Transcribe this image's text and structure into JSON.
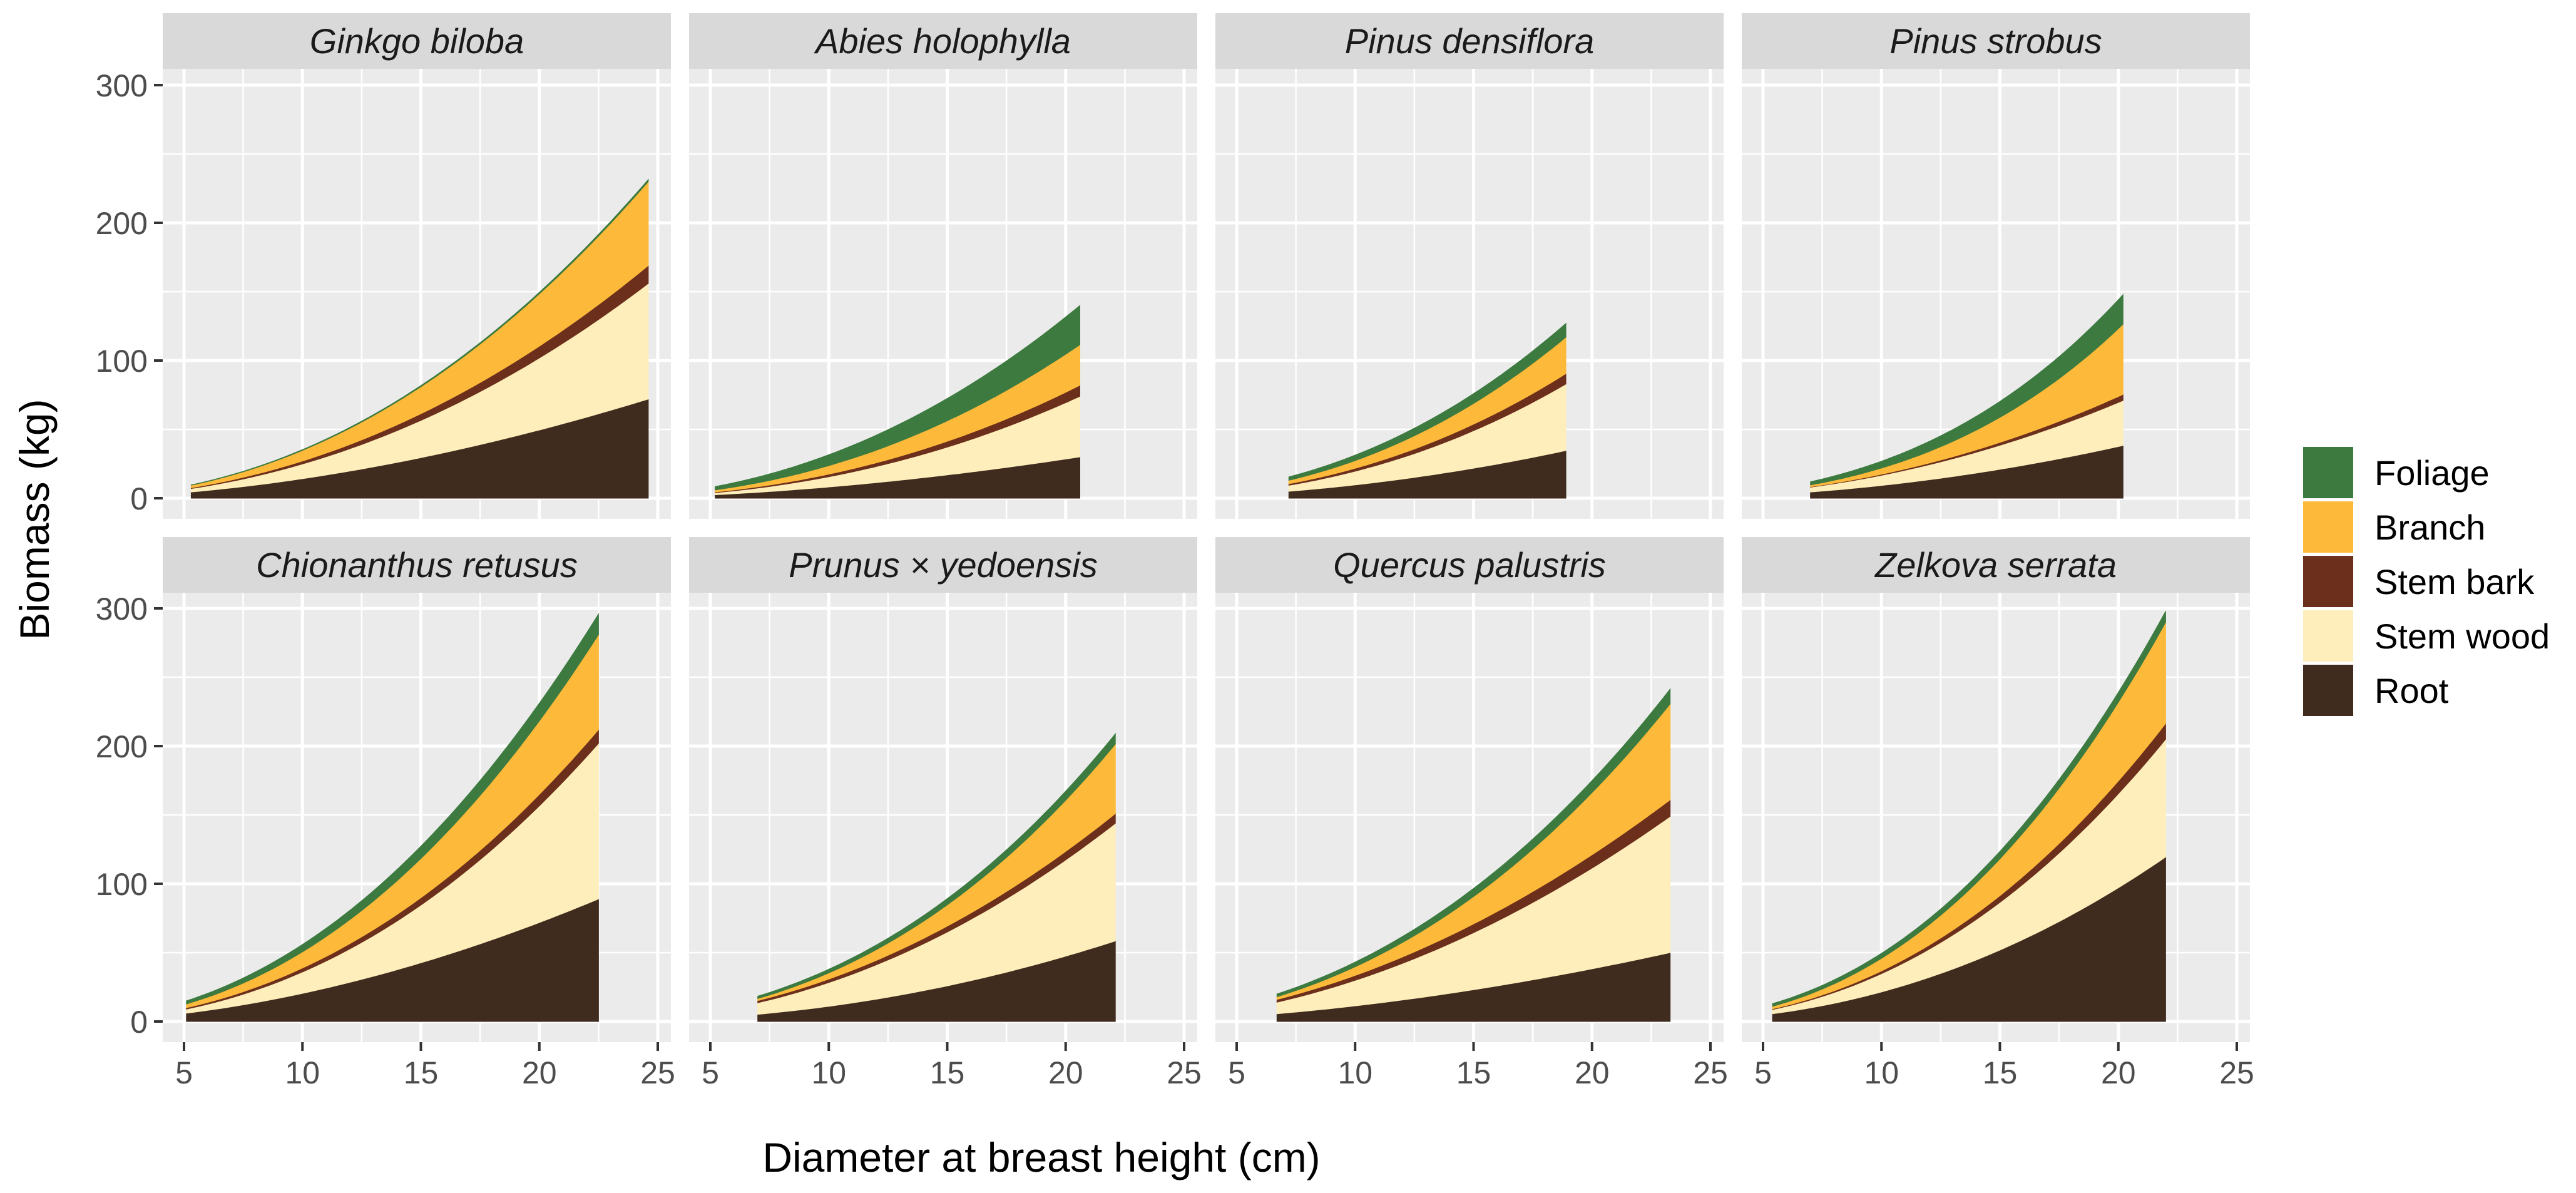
{
  "chart_data": {
    "type": "area",
    "stacked": true,
    "xlabel": "Diameter at breast height (cm)",
    "ylabel": "Biomass (kg)",
    "xlim": [
      5,
      25
    ],
    "ylim": [
      0,
      300
    ],
    "xticks": [
      5,
      10,
      15,
      20,
      25
    ],
    "yticks": [
      0,
      100,
      200,
      300
    ],
    "grid": true,
    "legend_position": "right",
    "interpolation": "power-law between the DBH endpoints",
    "legend": [
      {
        "name": "Foliage",
        "color": "#3c7a40"
      },
      {
        "name": "Branch",
        "color": "#fdb93a"
      },
      {
        "name": "Stem bark",
        "color": "#6b2f1c"
      },
      {
        "name": "Stem wood",
        "color": "#fdeebb"
      },
      {
        "name": "Root",
        "color": "#402c1f"
      }
    ],
    "stack_order": [
      "Root",
      "Stem wood",
      "Stem bark",
      "Branch",
      "Foliage"
    ],
    "panels": [
      {
        "title": "Ginkgo biloba",
        "x": [
          5.3,
          24.6
        ],
        "series": {
          "Root": [
            4.5,
            72
          ],
          "Stem wood": [
            2.5,
            84
          ],
          "Stem bark": [
            0.6,
            13
          ],
          "Branch": [
            1.8,
            61
          ],
          "Foliage": [
            0.3,
            1.5
          ]
        }
      },
      {
        "title": "Abies holophylla",
        "x": [
          5.2,
          20.6
        ],
        "series": {
          "Root": [
            2.5,
            30
          ],
          "Stem wood": [
            1.5,
            44
          ],
          "Stem bark": [
            0.5,
            8
          ],
          "Branch": [
            1.5,
            29.5
          ],
          "Foliage": [
            2.5,
            28.5
          ]
        }
      },
      {
        "title": "Pinus densiflora",
        "x": [
          7.2,
          18.9
        ],
        "series": {
          "Root": [
            5,
            34.6
          ],
          "Stem wood": [
            4.4,
            48.4
          ],
          "Stem bark": [
            1.1,
            7.5
          ],
          "Branch": [
            2.5,
            26.5
          ],
          "Foliage": [
            2.5,
            10
          ]
        }
      },
      {
        "title": "Pinus strobus",
        "x": [
          7.0,
          20.2
        ],
        "series": {
          "Root": [
            4.5,
            38.3
          ],
          "Stem wood": [
            3.5,
            32.7
          ],
          "Stem bark": [
            0.3,
            4.4
          ],
          "Branch": [
            1.3,
            51
          ],
          "Foliage": [
            2.4,
            21.5
          ]
        }
      },
      {
        "title": "Chionanthus retusus",
        "x": [
          5.1,
          22.5
        ],
        "series": {
          "Root": [
            6,
            89
          ],
          "Stem wood": [
            3,
            113
          ],
          "Stem bark": [
            1,
            10
          ],
          "Branch": [
            2.7,
            69
          ],
          "Foliage": [
            2.3,
            15
          ]
        }
      },
      {
        "title": "Prunus × yedoensis",
        "x": [
          7.0,
          22.1
        ],
        "series": {
          "Root": [
            5.2,
            58.5
          ],
          "Stem wood": [
            8.4,
            85.5
          ],
          "Stem bark": [
            1.6,
            7
          ],
          "Branch": [
            1.5,
            50.5
          ],
          "Foliage": [
            1.7,
            7.5
          ]
        }
      },
      {
        "title": "Quercus palustris",
        "x": [
          6.7,
          23.3
        ],
        "series": {
          "Root": [
            5.6,
            50
          ],
          "Stem wood": [
            8.4,
            99
          ],
          "Stem bark": [
            2,
            12
          ],
          "Branch": [
            2,
            69.7
          ],
          "Foliage": [
            2,
            10.8
          ]
        }
      },
      {
        "title": "Zelkova serrata",
        "x": [
          5.4,
          22.0
        ],
        "series": {
          "Root": [
            5.6,
            119.5
          ],
          "Stem wood": [
            3.1,
            85.5
          ],
          "Stem bark": [
            0.5,
            11.5
          ],
          "Branch": [
            1.8,
            73.5
          ],
          "Foliage": [
            2,
            8
          ]
        }
      }
    ]
  }
}
